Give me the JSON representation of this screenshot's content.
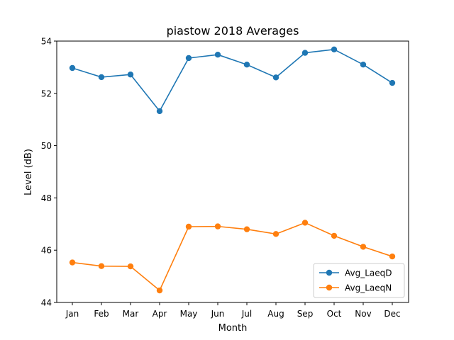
{
  "chart_data": {
    "type": "line",
    "title": "piastow 2018 Averages",
    "xlabel": "Month",
    "ylabel": "Level (dB)",
    "categories": [
      "Jan",
      "Feb",
      "Mar",
      "Apr",
      "May",
      "Jun",
      "Jul",
      "Aug",
      "Sep",
      "Oct",
      "Nov",
      "Dec"
    ],
    "ylim": [
      44,
      54
    ],
    "yticks": [
      44,
      46,
      48,
      50,
      52,
      54
    ],
    "grid": false,
    "legend_position": "bottom-right",
    "series": [
      {
        "name": "Avg_LaeqD",
        "color": "#1f77b4",
        "marker": "circle",
        "values": [
          52.97,
          52.62,
          52.72,
          51.32,
          53.35,
          53.48,
          53.1,
          52.61,
          53.55,
          53.68,
          53.1,
          52.4
        ]
      },
      {
        "name": "Avg_LaeqN",
        "color": "#ff7f0e",
        "marker": "circle",
        "values": [
          45.53,
          45.39,
          45.38,
          44.46,
          46.9,
          46.91,
          46.8,
          46.62,
          47.05,
          46.55,
          46.13,
          45.76
        ]
      }
    ]
  }
}
